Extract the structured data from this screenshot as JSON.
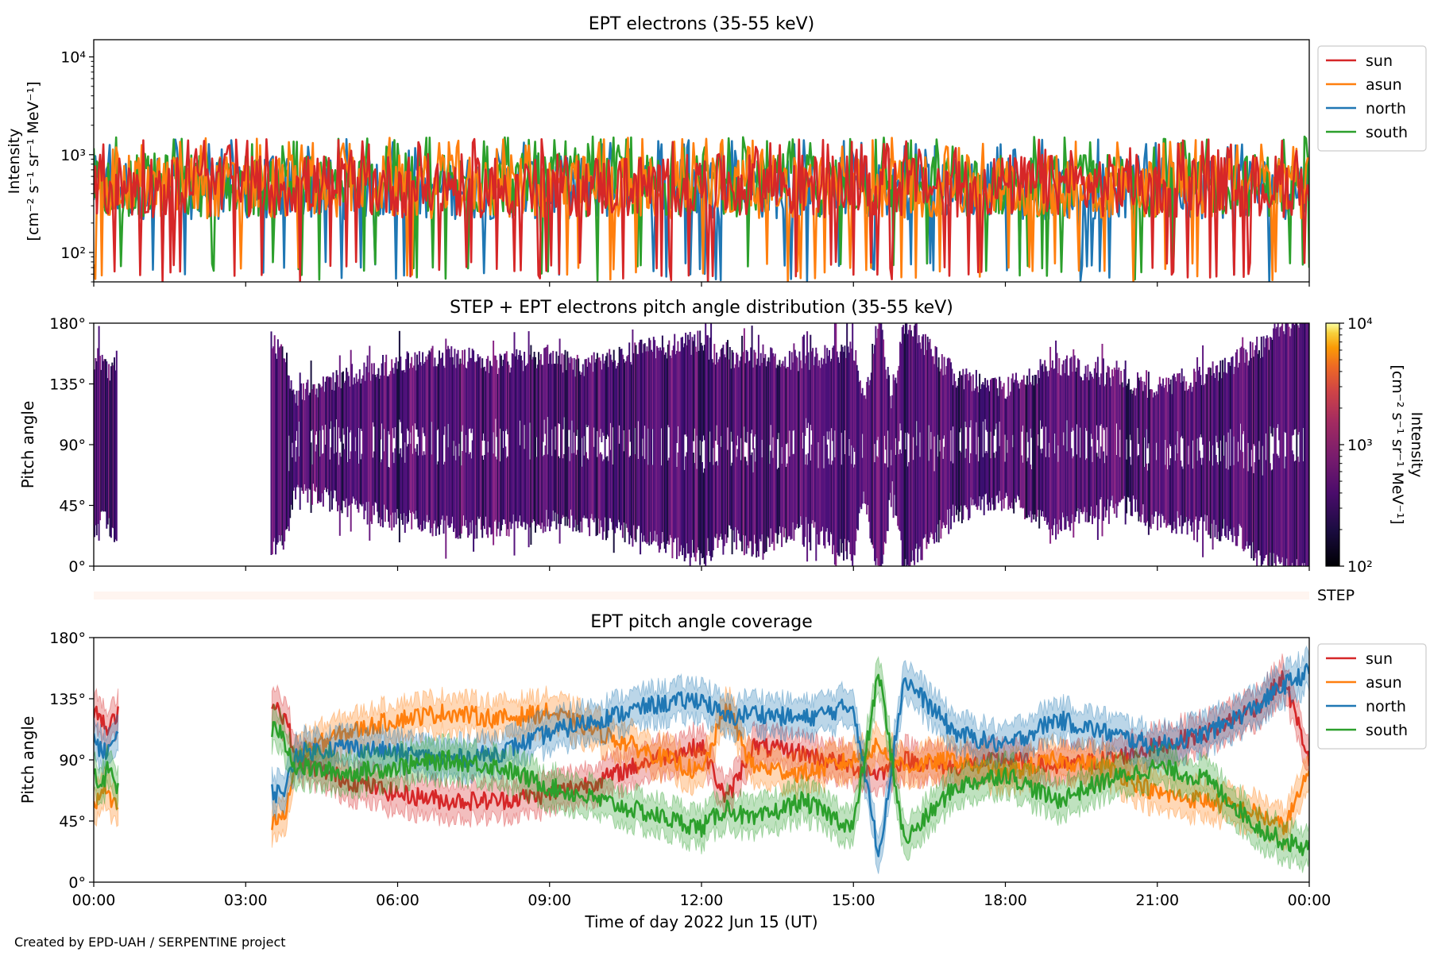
{
  "footer": "Created by EPD-UAH / SERPENTINE project",
  "colors": {
    "sun": "#d62728",
    "asun": "#ff7f0e",
    "north": "#1f77b4",
    "south": "#2ca02c"
  },
  "chart_data": [
    {
      "type": "line",
      "title": "EPT electrons (35-55 keV)",
      "ylabel_line1": "Intensity",
      "ylabel_line2": "[cm⁻² s⁻¹ sr⁻¹ MeV⁻¹]",
      "yscale": "log",
      "ylim": [
        50,
        15000
      ],
      "yticks": [
        {
          "value": 100,
          "label": "10²"
        },
        {
          "value": 1000,
          "label": "10³"
        },
        {
          "value": 10000,
          "label": "10⁴"
        }
      ],
      "xlim_hours": [
        0,
        24
      ],
      "legend_placement": "outside-right-top",
      "series": [
        {
          "name": "sun",
          "typical": 480,
          "min": 50,
          "max": 1450,
          "gaps_hours": []
        },
        {
          "name": "asun",
          "typical": 470,
          "min": 50,
          "max": 1500,
          "gaps_hours": []
        },
        {
          "name": "north",
          "typical": 460,
          "min": 50,
          "max": 1450,
          "gaps_hours": []
        },
        {
          "name": "south",
          "typical": 490,
          "min": 50,
          "max": 1550,
          "gaps_hours": []
        }
      ]
    },
    {
      "type": "heatmap",
      "title": "STEP + EPT electrons pitch angle distribution (35-55 keV)",
      "ylabel": "Pitch angle",
      "ylim": [
        0,
        180
      ],
      "yticks": [
        "0°",
        "45°",
        "90°",
        "135°",
        "180°"
      ],
      "xlim_hours": [
        0,
        24
      ],
      "colorbar": {
        "label_line1": "Intensity",
        "label_line2": "[cm⁻² s⁻¹ sr⁻¹ MeV⁻¹]",
        "scale": "log",
        "range": [
          100,
          10000
        ],
        "ticks": [
          {
            "value": 100,
            "label": "10²"
          },
          {
            "value": 1000,
            "label": "10³"
          },
          {
            "value": 10000,
            "label": "10⁴"
          }
        ],
        "colormap": "inferno"
      },
      "data_gaps_hours": [
        [
          0.5,
          3.5
        ]
      ],
      "typical_intensity": 400
    },
    {
      "type": "line",
      "title": "EPT pitch angle coverage",
      "ylabel": "Pitch angle",
      "xlabel": "Time of day 2022 Jun 15 (UT)",
      "ylim": [
        0,
        180
      ],
      "yticks": [
        "0°",
        "45°",
        "90°",
        "135°",
        "180°"
      ],
      "xlim_hours": [
        0,
        24
      ],
      "xtick_labels": [
        "00:00",
        "03:00",
        "06:00",
        "09:00",
        "12:00",
        "15:00",
        "18:00",
        "21:00",
        "00:00"
      ],
      "band_label": "STEP",
      "data_gaps_hours": [
        [
          0.5,
          3.5
        ]
      ],
      "legend_placement": "outside-right-top",
      "series": [
        {
          "name": "sun",
          "x": [
            0,
            0.1,
            0.2,
            0.3,
            0.45,
            3.5,
            3.6,
            3.8,
            4,
            5,
            6,
            7,
            8,
            9,
            10,
            11,
            12,
            12.5,
            13,
            14,
            15,
            15.5,
            16,
            17,
            18,
            19,
            20,
            21,
            22,
            23,
            23.5,
            24
          ],
          "y": [
            120,
            125,
            115,
            110,
            125,
            135,
            130,
            120,
            90,
            75,
            65,
            60,
            60,
            65,
            75,
            90,
            100,
            60,
            100,
            95,
            85,
            80,
            90,
            85,
            90,
            85,
            90,
            100,
            110,
            130,
            150,
            90
          ]
        },
        {
          "name": "asun",
          "x": [
            0,
            0.1,
            0.2,
            0.3,
            0.45,
            3.5,
            3.6,
            3.8,
            4,
            5,
            6,
            7,
            8,
            9,
            10,
            11,
            12,
            12.5,
            13,
            14,
            15,
            15.5,
            16,
            17,
            18,
            19,
            20,
            21,
            22,
            23,
            23.5,
            24
          ],
          "y": [
            55,
            60,
            70,
            60,
            55,
            40,
            45,
            50,
            95,
            110,
            120,
            125,
            120,
            125,
            110,
            95,
            80,
            130,
            85,
            80,
            90,
            100,
            85,
            90,
            80,
            90,
            85,
            65,
            60,
            50,
            40,
            80
          ]
        },
        {
          "name": "north",
          "x": [
            0,
            0.1,
            0.2,
            0.3,
            0.45,
            3.5,
            3.6,
            3.8,
            4,
            5,
            6,
            7,
            8,
            9,
            10,
            11,
            12,
            12.5,
            13,
            14,
            15,
            15.5,
            16,
            17,
            18,
            19,
            20,
            21,
            22,
            23,
            23.5,
            24
          ],
          "y": [
            110,
            100,
            95,
            100,
            105,
            70,
            65,
            70,
            95,
            100,
            95,
            90,
            95,
            110,
            120,
            130,
            135,
            120,
            125,
            120,
            130,
            20,
            150,
            110,
            100,
            120,
            110,
            100,
            110,
            130,
            145,
            155
          ]
        },
        {
          "name": "south",
          "x": [
            0,
            0.1,
            0.2,
            0.3,
            0.45,
            3.5,
            3.6,
            3.8,
            4,
            5,
            6,
            7,
            8,
            9,
            10,
            11,
            12,
            12.5,
            13,
            14,
            15,
            15.5,
            16,
            17,
            18,
            19,
            20,
            21,
            22,
            23,
            23.5,
            24
          ],
          "y": [
            80,
            70,
            75,
            85,
            70,
            110,
            115,
            100,
            85,
            80,
            85,
            90,
            85,
            70,
            60,
            50,
            40,
            55,
            45,
            60,
            40,
            155,
            30,
            70,
            80,
            60,
            75,
            85,
            75,
            40,
            30,
            25
          ]
        }
      ]
    }
  ]
}
